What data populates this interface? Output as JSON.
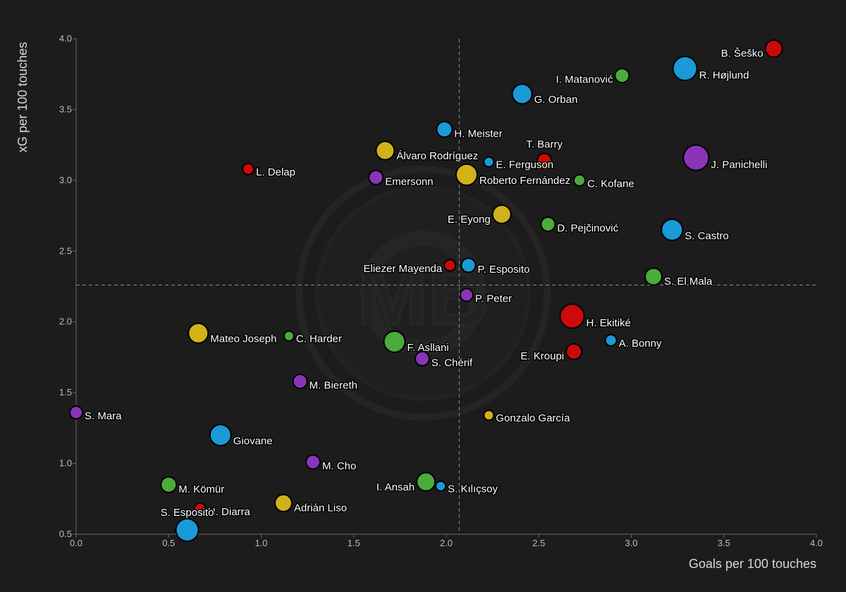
{
  "chart_data": {
    "type": "scatter",
    "xlabel": "Goals per 100 touches",
    "ylabel": "xG per 100 touches",
    "xlim": [
      0,
      4
    ],
    "ylim": [
      0.5,
      4
    ],
    "x_ticks": [
      "0.0",
      "0.5",
      "1.0",
      "1.5",
      "2.0",
      "2.5",
      "3.0",
      "3.5",
      "4.0"
    ],
    "y_ticks": [
      "0.5",
      "1.0",
      "1.5",
      "2.0",
      "2.5",
      "3.0",
      "3.5",
      "4.0"
    ],
    "median_x": 2.07,
    "median_y": 2.26,
    "watermark": "MB",
    "colors": {
      "red": "#cc0a0a",
      "blue": "#1a9ad6",
      "green": "#4cab3c",
      "yellow": "#d1b21a",
      "purple": "#8a35b8"
    },
    "points": [
      {
        "name": "B. Šeško",
        "x": 3.77,
        "y": 3.93,
        "size": 12,
        "color": "red",
        "anchor": "end"
      },
      {
        "name": "R. Højlund",
        "x": 3.29,
        "y": 3.79,
        "size": 17,
        "color": "blue",
        "anchor": "start"
      },
      {
        "name": "I. Matanović",
        "x": 2.95,
        "y": 3.74,
        "size": 10,
        "color": "green",
        "anchor": "end"
      },
      {
        "name": "G. Orban",
        "x": 2.41,
        "y": 3.61,
        "size": 14,
        "color": "blue",
        "anchor": "start"
      },
      {
        "name": "H. Meister",
        "x": 1.99,
        "y": 3.36,
        "size": 11,
        "color": "blue",
        "anchor": "start"
      },
      {
        "name": "Álvaro Rodríguez",
        "x": 1.67,
        "y": 3.21,
        "size": 13,
        "color": "yellow",
        "anchor": "start"
      },
      {
        "name": "T. Barry",
        "x": 2.53,
        "y": 3.14,
        "size": 10,
        "color": "red",
        "anchor": "middle"
      },
      {
        "name": "J. Panichelli",
        "x": 3.35,
        "y": 3.16,
        "size": 18,
        "color": "purple",
        "anchor": "start"
      },
      {
        "name": "E. Ferguson",
        "x": 2.23,
        "y": 3.13,
        "size": 7,
        "color": "blue",
        "anchor": "start"
      },
      {
        "name": "L. Delap",
        "x": 0.93,
        "y": 3.08,
        "size": 8,
        "color": "red",
        "anchor": "start"
      },
      {
        "name": "Roberto Fernández",
        "x": 2.11,
        "y": 3.04,
        "size": 15,
        "color": "yellow",
        "anchor": "start"
      },
      {
        "name": "Emersonn",
        "x": 1.62,
        "y": 3.02,
        "size": 10,
        "color": "purple",
        "anchor": "start"
      },
      {
        "name": "C. Kofane",
        "x": 2.72,
        "y": 3.0,
        "size": 8,
        "color": "green",
        "anchor": "start"
      },
      {
        "name": "E. Eyong",
        "x": 2.3,
        "y": 2.76,
        "size": 13,
        "color": "yellow",
        "anchor": "end"
      },
      {
        "name": "D. Pejčinović",
        "x": 2.55,
        "y": 2.69,
        "size": 10,
        "color": "green",
        "anchor": "start"
      },
      {
        "name": "S. Castro",
        "x": 3.22,
        "y": 2.65,
        "size": 15,
        "color": "blue",
        "anchor": "start"
      },
      {
        "name": "Eliezer Mayenda",
        "x": 2.02,
        "y": 2.4,
        "size": 8,
        "color": "red",
        "anchor": "end"
      },
      {
        "name": "P. Esposito",
        "x": 2.12,
        "y": 2.4,
        "size": 10,
        "color": "blue",
        "anchor": "start"
      },
      {
        "name": "S. El Mala",
        "x": 3.12,
        "y": 2.32,
        "size": 12,
        "color": "green",
        "anchor": "start"
      },
      {
        "name": "P. Peter",
        "x": 2.11,
        "y": 2.19,
        "size": 9,
        "color": "purple",
        "anchor": "start"
      },
      {
        "name": "H. Ekitiké",
        "x": 2.68,
        "y": 2.04,
        "size": 17,
        "color": "red",
        "anchor": "start"
      },
      {
        "name": "Mateo Joseph",
        "x": 0.66,
        "y": 1.92,
        "size": 14,
        "color": "yellow",
        "anchor": "start"
      },
      {
        "name": "C. Harder",
        "x": 1.15,
        "y": 1.9,
        "size": 7,
        "color": "green",
        "anchor": "start"
      },
      {
        "name": "A. Bonny",
        "x": 2.89,
        "y": 1.87,
        "size": 8,
        "color": "blue",
        "anchor": "start"
      },
      {
        "name": "F. Asllani",
        "x": 1.72,
        "y": 1.86,
        "size": 15,
        "color": "green",
        "anchor": "start"
      },
      {
        "name": "E. Kroupi",
        "x": 2.69,
        "y": 1.79,
        "size": 11,
        "color": "red",
        "anchor": "end"
      },
      {
        "name": "S. Chérif",
        "x": 1.87,
        "y": 1.74,
        "size": 10,
        "color": "purple",
        "anchor": "start"
      },
      {
        "name": "M. Biereth",
        "x": 1.21,
        "y": 1.58,
        "size": 10,
        "color": "purple",
        "anchor": "start"
      },
      {
        "name": "S. Mara",
        "x": 0.0,
        "y": 1.36,
        "size": 9,
        "color": "purple",
        "anchor": "start"
      },
      {
        "name": "Gonzalo García",
        "x": 2.23,
        "y": 1.34,
        "size": 7,
        "color": "yellow",
        "anchor": "start"
      },
      {
        "name": "Giovane",
        "x": 0.78,
        "y": 1.2,
        "size": 15,
        "color": "blue",
        "anchor": "start"
      },
      {
        "name": "M. Cho",
        "x": 1.28,
        "y": 1.01,
        "size": 10,
        "color": "purple",
        "anchor": "start"
      },
      {
        "name": "I. Ansah",
        "x": 1.89,
        "y": 0.87,
        "size": 13,
        "color": "green",
        "anchor": "end"
      },
      {
        "name": "S. Kılıçsoy",
        "x": 1.97,
        "y": 0.84,
        "size": 7,
        "color": "blue",
        "anchor": "start"
      },
      {
        "name": "M. Kömür",
        "x": 0.5,
        "y": 0.85,
        "size": 11,
        "color": "green",
        "anchor": "start"
      },
      {
        "name": "Adrián Liso",
        "x": 1.12,
        "y": 0.72,
        "size": 12,
        "color": "yellow",
        "anchor": "start"
      },
      {
        "name": "H. Diarra",
        "x": 0.67,
        "y": 0.68,
        "size": 8,
        "color": "red",
        "anchor": "start"
      },
      {
        "name": "S. Esposito",
        "x": 0.6,
        "y": 0.53,
        "size": 16,
        "color": "blue",
        "anchor": "middle-above"
      }
    ]
  }
}
